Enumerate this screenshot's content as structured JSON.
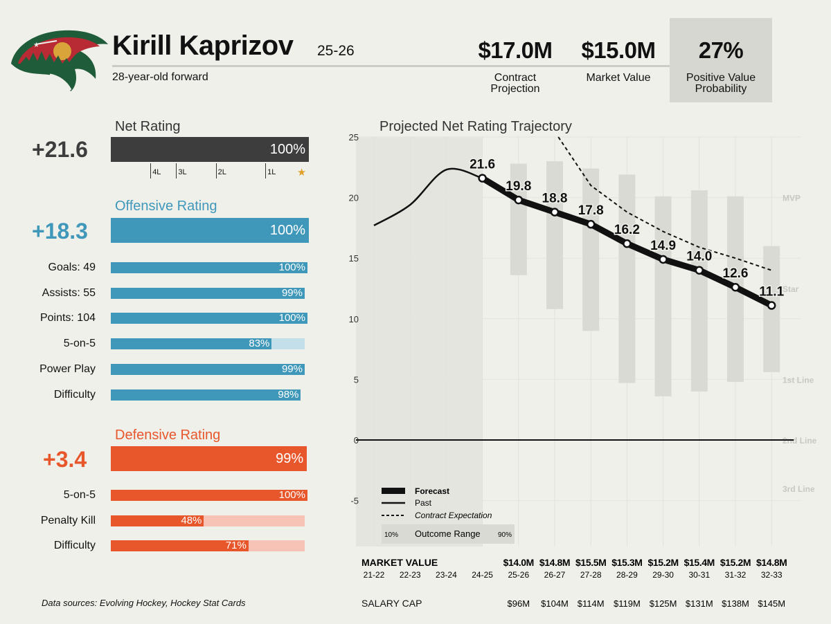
{
  "header": {
    "name": "Kirill Kaprizov",
    "season": "25-26",
    "subtitle": "28-year-old forward",
    "contract_projection": {
      "value": "$17.0M",
      "label": "Contract Projection"
    },
    "market_value": {
      "value": "$15.0M",
      "label": "Market Value"
    },
    "positive_value_prob": {
      "value": "27%",
      "label": "Positive Value Probability"
    }
  },
  "net": {
    "title": "Net Rating",
    "value": "+21.6",
    "pct_label": "100%",
    "pct": 100,
    "ticks": [
      {
        "label": "4L",
        "pos": 0.2
      },
      {
        "label": "3L",
        "pos": 0.33
      },
      {
        "label": "2L",
        "pos": 0.53
      },
      {
        "label": "1L",
        "pos": 0.78
      },
      {
        "label": "★",
        "pos": 0.94
      }
    ]
  },
  "offense": {
    "title": "Offensive Rating",
    "value": "+18.3",
    "pct_label": "100%",
    "pct": 100,
    "rows": [
      {
        "label": "Goals: 49",
        "pct": 100,
        "pct_label": "100%"
      },
      {
        "label": "Assists: 55",
        "pct": 99,
        "pct_label": "99%"
      },
      {
        "label": "Points: 104",
        "pct": 100,
        "pct_label": "100%"
      },
      {
        "label": "5-on-5",
        "pct": 83,
        "pct_label": "83%"
      },
      {
        "label": "Power Play",
        "pct": 99,
        "pct_label": "99%"
      },
      {
        "label": "Difficulty",
        "pct": 98,
        "pct_label": "98%"
      }
    ]
  },
  "defense": {
    "title": "Defensive Rating",
    "value": "+3.4",
    "pct_label": "99%",
    "pct": 99,
    "rows": [
      {
        "label": "5-on-5",
        "pct": 100,
        "pct_label": "100%"
      },
      {
        "label": "Penalty Kill",
        "pct": 48,
        "pct_label": "48%"
      },
      {
        "label": "Difficulty",
        "pct": 71,
        "pct_label": "71%"
      }
    ]
  },
  "source": "Data sources: Evolving Hockey, Hockey Stat Cards",
  "colors": {
    "net": "#3d3d3d",
    "offense": "#3f97ba",
    "offense_light": "#c2dfea",
    "defense": "#e8562b",
    "defense_light": "#f6c3b6",
    "range": "#dadad5",
    "past_shade": "#e5e5e0",
    "background": "#f0f0eb"
  },
  "chart_data": {
    "type": "line",
    "title": "Projected Net Rating Trajectory",
    "seasons": [
      "21-22",
      "22-23",
      "23-24",
      "24-25",
      "25-26",
      "26-27",
      "27-28",
      "28-29",
      "29-30",
      "30-31",
      "31-32",
      "32-33"
    ],
    "ylim": [
      -8,
      25
    ],
    "yticks": [
      25,
      20,
      15,
      10,
      5,
      0,
      -5
    ],
    "tier_labels": [
      {
        "label": "MVP",
        "y": 20
      },
      {
        "label": "Star",
        "y": 12.5
      },
      {
        "label": "1st Line",
        "y": 5
      },
      {
        "label": "2nd Line",
        "y": 0
      },
      {
        "label": "3rd Line",
        "y": -4
      }
    ],
    "past": [
      {
        "x": 0,
        "y": 17.7
      },
      {
        "x": 1,
        "y": 19.4
      },
      {
        "x": 2,
        "y": 22.3
      },
      {
        "x": 3,
        "y": 21.6
      }
    ],
    "forecast": {
      "x": [
        3,
        4,
        5,
        6,
        7,
        8,
        9,
        10,
        11
      ],
      "values": [
        21.6,
        19.8,
        18.8,
        17.8,
        16.2,
        14.9,
        14.0,
        12.6,
        11.1
      ],
      "labels": [
        "21.6",
        "19.8",
        "18.8",
        "17.8",
        "16.2",
        "14.9",
        "14.0",
        "12.6",
        "11.1"
      ]
    },
    "contract_expectation": [
      {
        "x": 5.1,
        "y": 25
      },
      {
        "x": 6,
        "y": 21
      },
      {
        "x": 7,
        "y": 18.8
      },
      {
        "x": 8,
        "y": 17.2
      },
      {
        "x": 9,
        "y": 15.9
      },
      {
        "x": 10,
        "y": 15
      },
      {
        "x": 11,
        "y": 14
      }
    ],
    "outcome_range": [
      {
        "x": 4,
        "low": 13.6,
        "high": 22.8
      },
      {
        "x": 5,
        "low": 10.8,
        "high": 23.0
      },
      {
        "x": 6,
        "low": 9.0,
        "high": 22.4
      },
      {
        "x": 7,
        "low": 4.7,
        "high": 21.9
      },
      {
        "x": 8,
        "low": 3.6,
        "high": 20.1
      },
      {
        "x": 9,
        "low": 4.0,
        "high": 20.6
      },
      {
        "x": 10,
        "low": 4.8,
        "high": 20.1
      },
      {
        "x": 11,
        "low": 5.6,
        "high": 16.0
      }
    ],
    "legend": {
      "forecast": "Forecast",
      "past": "Past",
      "contract": "Contract Expectation",
      "range": "Outcome Range",
      "range_low": "10%",
      "range_high": "90%"
    },
    "market_value_header": "MARKET VALUE",
    "market_values": [
      "",
      "",
      "",
      "",
      "$14.0M",
      "$14.8M",
      "$15.5M",
      "$15.3M",
      "$15.2M",
      "$15.4M",
      "$15.2M",
      "$14.8M"
    ],
    "salary_cap_header": "SALARY CAP",
    "salary_caps": [
      "",
      "",
      "",
      "",
      "$96M",
      "$104M",
      "$114M",
      "$119M",
      "$125M",
      "$131M",
      "$138M",
      "$145M"
    ]
  }
}
